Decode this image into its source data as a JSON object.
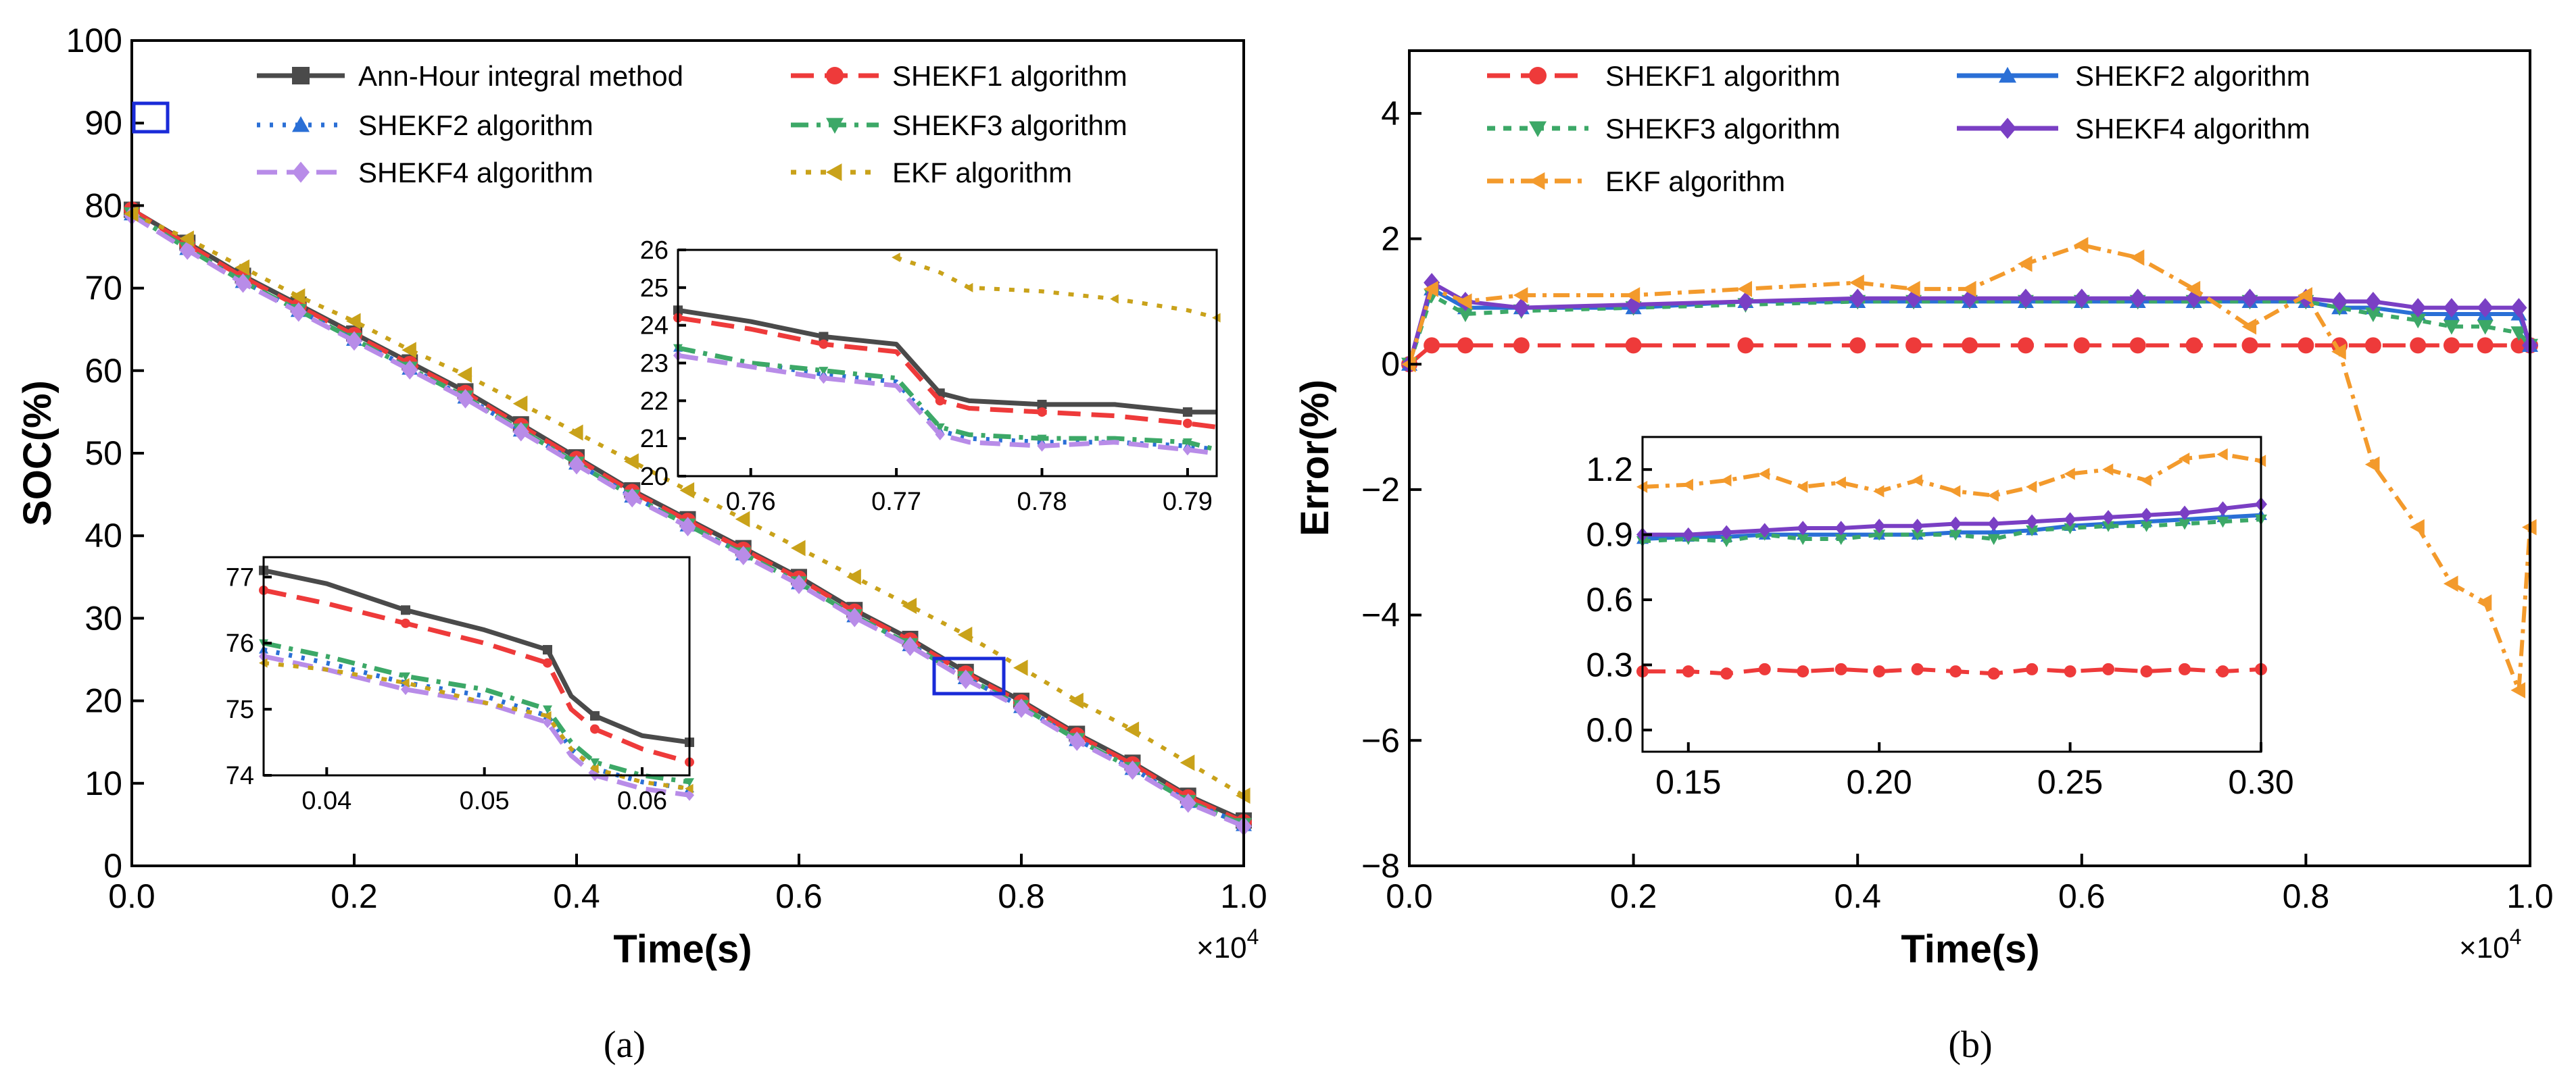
{
  "colors": {
    "ah": "#4a4a4a",
    "shekf1": "#ee3a3a",
    "shekf2": "#2a6fd6",
    "shekf3": "#3ca867",
    "shekf4": "#b88ce8",
    "ekf_a": "#c9a21a",
    "ekf_b": "#f39a2c",
    "shekf4_b": "#7a3fc4",
    "zoombox": "#1a2bd8"
  },
  "panels": {
    "a": {
      "label": "(a)"
    },
    "b": {
      "label": "(b)"
    }
  },
  "chart_data": [
    {
      "id": "a-main",
      "type": "line",
      "xlabel": "Time(s)",
      "ylabel": "SOC(%)",
      "x_multiplier": "×10",
      "x_multiplier_exp": "4",
      "xlim": [
        0.0,
        1.0
      ],
      "ylim": [
        0,
        100
      ],
      "xticks": [
        "0.0",
        "0.2",
        "0.4",
        "0.6",
        "0.8",
        "1.0"
      ],
      "yticks": [
        "0",
        "10",
        "20",
        "30",
        "40",
        "50",
        "60",
        "70",
        "80",
        "90",
        "100"
      ],
      "legend": [
        "Ann-Hour integral method",
        "SHEKF1 algorithm",
        "SHEKF2 algorithm",
        "SHEKF3 algorithm",
        "SHEKF4 algorithm",
        "EKF algorithm"
      ],
      "x": [
        0.0,
        0.05,
        0.1,
        0.15,
        0.2,
        0.25,
        0.3,
        0.35,
        0.4,
        0.45,
        0.5,
        0.55,
        0.6,
        0.65,
        0.7,
        0.75,
        0.8,
        0.85,
        0.9,
        0.95,
        1.0
      ],
      "series": [
        {
          "name": "Ann-Hour integral method",
          "values": [
            79.5,
            75.5,
            71.5,
            68.0,
            64.5,
            61.0,
            57.5,
            53.5,
            49.5,
            45.5,
            42.0,
            38.5,
            35.0,
            31.0,
            27.5,
            23.5,
            20.0,
            16.0,
            12.5,
            8.5,
            5.5
          ]
        },
        {
          "name": "SHEKF1 algorithm",
          "values": [
            79.5,
            75.3,
            71.3,
            67.8,
            64.3,
            60.8,
            57.3,
            53.3,
            49.3,
            45.3,
            41.8,
            38.3,
            34.8,
            30.8,
            27.3,
            23.3,
            19.8,
            15.8,
            12.3,
            8.3,
            5.3
          ]
        },
        {
          "name": "SHEKF2 algorithm",
          "values": [
            79.0,
            74.8,
            70.8,
            67.3,
            63.8,
            60.3,
            56.8,
            52.8,
            48.8,
            44.8,
            41.3,
            37.8,
            34.3,
            30.3,
            26.8,
            22.8,
            19.3,
            15.3,
            11.8,
            7.8,
            5.0
          ]
        },
        {
          "name": "SHEKF3 algorithm",
          "values": [
            79.0,
            74.8,
            70.8,
            67.3,
            63.8,
            60.3,
            56.8,
            52.8,
            48.8,
            44.8,
            41.3,
            37.8,
            34.3,
            30.3,
            26.8,
            22.8,
            19.3,
            15.3,
            11.8,
            7.8,
            5.0
          ]
        },
        {
          "name": "SHEKF4 algorithm",
          "values": [
            78.8,
            74.6,
            70.6,
            67.1,
            63.6,
            60.1,
            56.6,
            52.6,
            48.6,
            44.6,
            41.1,
            37.6,
            34.1,
            30.1,
            26.6,
            22.6,
            19.1,
            15.1,
            11.6,
            7.6,
            4.8
          ]
        },
        {
          "name": "EKF algorithm",
          "values": [
            79.0,
            76.0,
            72.5,
            69.0,
            66.0,
            62.5,
            59.5,
            56.0,
            52.5,
            49.0,
            45.5,
            42.0,
            38.5,
            35.0,
            31.5,
            28.0,
            24.0,
            20.0,
            16.5,
            12.5,
            8.5
          ]
        }
      ]
    },
    {
      "id": "a-inset-upper",
      "type": "line",
      "xlim": [
        0.755,
        0.792
      ],
      "ylim": [
        20,
        26
      ],
      "xticks": [
        "0.76",
        "0.77",
        "0.78",
        "0.79"
      ],
      "yticks": [
        "20",
        "21",
        "22",
        "23",
        "24",
        "25",
        "26"
      ],
      "x": [
        0.755,
        0.76,
        0.765,
        0.77,
        0.773,
        0.775,
        0.78,
        0.785,
        0.79,
        0.792
      ],
      "series": [
        {
          "name": "Ann-Hour integral method",
          "values": [
            24.4,
            24.1,
            23.7,
            23.5,
            22.2,
            22.0,
            21.9,
            21.9,
            21.7,
            21.7
          ]
        },
        {
          "name": "SHEKF1 algorithm",
          "values": [
            24.2,
            23.9,
            23.5,
            23.3,
            22.0,
            21.8,
            21.7,
            21.6,
            21.4,
            21.3
          ]
        },
        {
          "name": "SHEKF2 algorithm",
          "values": [
            23.4,
            23.0,
            22.7,
            22.5,
            21.2,
            21.0,
            20.9,
            20.9,
            20.8,
            20.7
          ]
        },
        {
          "name": "SHEKF3 algorithm",
          "values": [
            23.4,
            23.0,
            22.8,
            22.6,
            21.3,
            21.1,
            21.0,
            21.0,
            20.9,
            20.7
          ]
        },
        {
          "name": "SHEKF4 algorithm",
          "values": [
            23.2,
            22.9,
            22.6,
            22.4,
            21.1,
            20.9,
            20.8,
            20.9,
            20.7,
            20.6
          ]
        },
        {
          "name": "EKF algorithm",
          "values": [
            null,
            null,
            null,
            25.8,
            25.4,
            25.0,
            24.9,
            24.7,
            24.4,
            24.2
          ]
        }
      ]
    },
    {
      "id": "a-inset-lower",
      "type": "line",
      "xlim": [
        0.036,
        0.063
      ],
      "ylim": [
        74,
        77.3
      ],
      "xticks": [
        "0.04",
        "0.05",
        "0.06"
      ],
      "yticks": [
        "74",
        "75",
        "76",
        "77"
      ],
      "x": [
        0.036,
        0.04,
        0.045,
        0.05,
        0.054,
        0.0555,
        0.057,
        0.06,
        0.063
      ],
      "series": [
        {
          "name": "Ann-Hour integral method",
          "values": [
            77.1,
            76.9,
            76.5,
            76.2,
            75.9,
            75.2,
            74.9,
            74.6,
            74.5
          ]
        },
        {
          "name": "SHEKF1 algorithm",
          "values": [
            76.8,
            76.6,
            76.3,
            76.0,
            75.7,
            75.0,
            74.7,
            74.4,
            74.2
          ]
        },
        {
          "name": "SHEKF2 algorithm",
          "values": [
            75.9,
            75.7,
            75.4,
            75.2,
            74.9,
            74.4,
            74.1,
            73.9,
            73.8
          ]
        },
        {
          "name": "SHEKF3 algorithm",
          "values": [
            76.0,
            75.8,
            75.5,
            75.3,
            75.0,
            74.5,
            74.2,
            74.0,
            73.9
          ]
        },
        {
          "name": "SHEKF4 algorithm",
          "values": [
            75.8,
            75.6,
            75.3,
            75.1,
            74.8,
            74.3,
            74.0,
            73.8,
            73.7
          ]
        },
        {
          "name": "EKF algorithm",
          "values": [
            75.7,
            75.6,
            75.4,
            75.1,
            74.9,
            74.4,
            74.1,
            73.9,
            73.8
          ]
        }
      ]
    },
    {
      "id": "b-main",
      "type": "line",
      "xlabel": "Time(s)",
      "ylabel": "Error(%)",
      "x_multiplier": "×10",
      "x_multiplier_exp": "4",
      "xlim": [
        0.0,
        1.0
      ],
      "ylim": [
        -8,
        5
      ],
      "xticks": [
        "0.0",
        "0.2",
        "0.4",
        "0.6",
        "0.8",
        "1.0"
      ],
      "yticks": [
        "−8",
        "−6",
        "−4",
        "−2",
        "0",
        "2",
        "4"
      ],
      "ytick_values": [
        -8,
        -6,
        -4,
        -2,
        0,
        2,
        4
      ],
      "legend": [
        "SHEKF1 algorithm",
        "SHEKF2 algorithm",
        "SHEKF3 algorithm",
        "SHEKF4 algorithm",
        "EKF algorithm"
      ],
      "x": [
        0.0,
        0.02,
        0.05,
        0.1,
        0.2,
        0.3,
        0.4,
        0.45,
        0.5,
        0.55,
        0.6,
        0.65,
        0.7,
        0.75,
        0.8,
        0.83,
        0.86,
        0.9,
        0.93,
        0.96,
        0.99,
        1.0
      ],
      "series": [
        {
          "name": "SHEKF1 algorithm",
          "values": [
            0.0,
            0.3,
            0.3,
            0.3,
            0.3,
            0.3,
            0.3,
            0.3,
            0.3,
            0.3,
            0.3,
            0.3,
            0.3,
            0.3,
            0.3,
            0.3,
            0.3,
            0.3,
            0.3,
            0.3,
            0.3,
            0.3
          ]
        },
        {
          "name": "SHEKF2 algorithm",
          "values": [
            0.0,
            1.2,
            0.9,
            0.9,
            0.9,
            1.0,
            1.0,
            1.0,
            1.0,
            1.0,
            1.0,
            1.0,
            1.0,
            1.0,
            1.0,
            0.9,
            0.9,
            0.8,
            0.8,
            0.8,
            0.8,
            0.3
          ]
        },
        {
          "name": "SHEKF3 algorithm",
          "values": [
            0.0,
            1.1,
            0.8,
            0.85,
            0.9,
            0.95,
            1.0,
            1.0,
            1.0,
            1.0,
            1.0,
            1.0,
            1.0,
            1.0,
            1.0,
            0.9,
            0.8,
            0.7,
            0.6,
            0.6,
            0.5,
            0.3
          ]
        },
        {
          "name": "SHEKF4 algorithm",
          "values": [
            0.0,
            1.3,
            1.0,
            0.9,
            0.95,
            1.0,
            1.05,
            1.05,
            1.05,
            1.05,
            1.05,
            1.05,
            1.05,
            1.05,
            1.05,
            1.0,
            1.0,
            0.9,
            0.9,
            0.9,
            0.9,
            0.3
          ]
        },
        {
          "name": "EKF algorithm",
          "values": [
            0.0,
            1.2,
            1.0,
            1.1,
            1.1,
            1.2,
            1.3,
            1.2,
            1.2,
            1.6,
            1.9,
            1.7,
            1.2,
            0.6,
            1.1,
            0.2,
            -1.6,
            -2.6,
            -3.5,
            -3.8,
            -5.2,
            -2.6
          ]
        }
      ]
    },
    {
      "id": "b-inset",
      "type": "line",
      "xlim": [
        0.138,
        0.3
      ],
      "ylim": [
        -0.1,
        1.35
      ],
      "xticks": [
        "0.15",
        "0.20",
        "0.25",
        "0.30"
      ],
      "xtick_values": [
        0.15,
        0.2,
        0.25,
        0.3
      ],
      "yticks": [
        "0.0",
        "0.3",
        "0.6",
        "0.9",
        "1.2"
      ],
      "ytick_values": [
        0.0,
        0.3,
        0.6,
        0.9,
        1.2
      ],
      "x": [
        0.138,
        0.15,
        0.16,
        0.17,
        0.18,
        0.19,
        0.2,
        0.21,
        0.22,
        0.23,
        0.24,
        0.25,
        0.26,
        0.27,
        0.28,
        0.29,
        0.3
      ],
      "series": [
        {
          "name": "SHEKF1 algorithm",
          "values": [
            0.27,
            0.27,
            0.26,
            0.28,
            0.27,
            0.28,
            0.27,
            0.28,
            0.27,
            0.26,
            0.28,
            0.27,
            0.28,
            0.27,
            0.28,
            0.27,
            0.28
          ]
        },
        {
          "name": "SHEKF2 algorithm",
          "values": [
            0.88,
            0.89,
            0.89,
            0.9,
            0.9,
            0.9,
            0.9,
            0.9,
            0.91,
            0.91,
            0.92,
            0.94,
            0.95,
            0.96,
            0.97,
            0.98,
            0.99
          ]
        },
        {
          "name": "SHEKF3 algorithm",
          "values": [
            0.87,
            0.88,
            0.87,
            0.9,
            0.88,
            0.88,
            0.9,
            0.9,
            0.9,
            0.88,
            0.92,
            0.93,
            0.94,
            0.94,
            0.95,
            0.96,
            0.97
          ]
        },
        {
          "name": "SHEKF4 algorithm",
          "values": [
            0.9,
            0.9,
            0.91,
            0.92,
            0.93,
            0.93,
            0.94,
            0.94,
            0.95,
            0.95,
            0.96,
            0.97,
            0.98,
            0.99,
            1.0,
            1.02,
            1.04
          ]
        },
        {
          "name": "EKF algorithm",
          "values": [
            1.12,
            1.13,
            1.15,
            1.18,
            1.12,
            1.14,
            1.1,
            1.15,
            1.1,
            1.08,
            1.12,
            1.18,
            1.2,
            1.15,
            1.25,
            1.27,
            1.24
          ]
        }
      ]
    }
  ]
}
